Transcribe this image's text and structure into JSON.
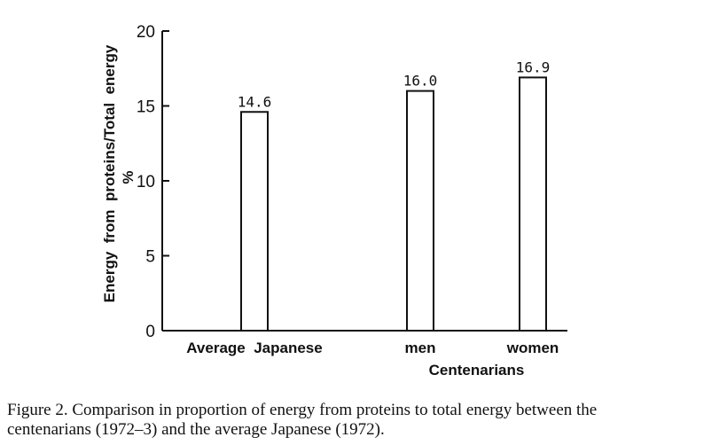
{
  "chart_data": {
    "type": "bar",
    "categories": [
      "Average  Japanese",
      "men",
      "women"
    ],
    "values": [
      14.6,
      16.0,
      16.9
    ],
    "value_labels": [
      "14.6",
      "16.0",
      "16.9"
    ],
    "group_label": "Centenarians",
    "ylabel": "Energy  from  proteins/Total  energy",
    "yunit": "%",
    "ylim": [
      0,
      20
    ],
    "yticks": [
      0,
      5,
      10,
      15,
      20
    ],
    "grid": false
  },
  "caption": {
    "line1": "Figure 2.   Comparison in proportion of energy from proteins to total energy between the",
    "line2": "centenarians (1972–3) and the average Japanese (1972)."
  }
}
